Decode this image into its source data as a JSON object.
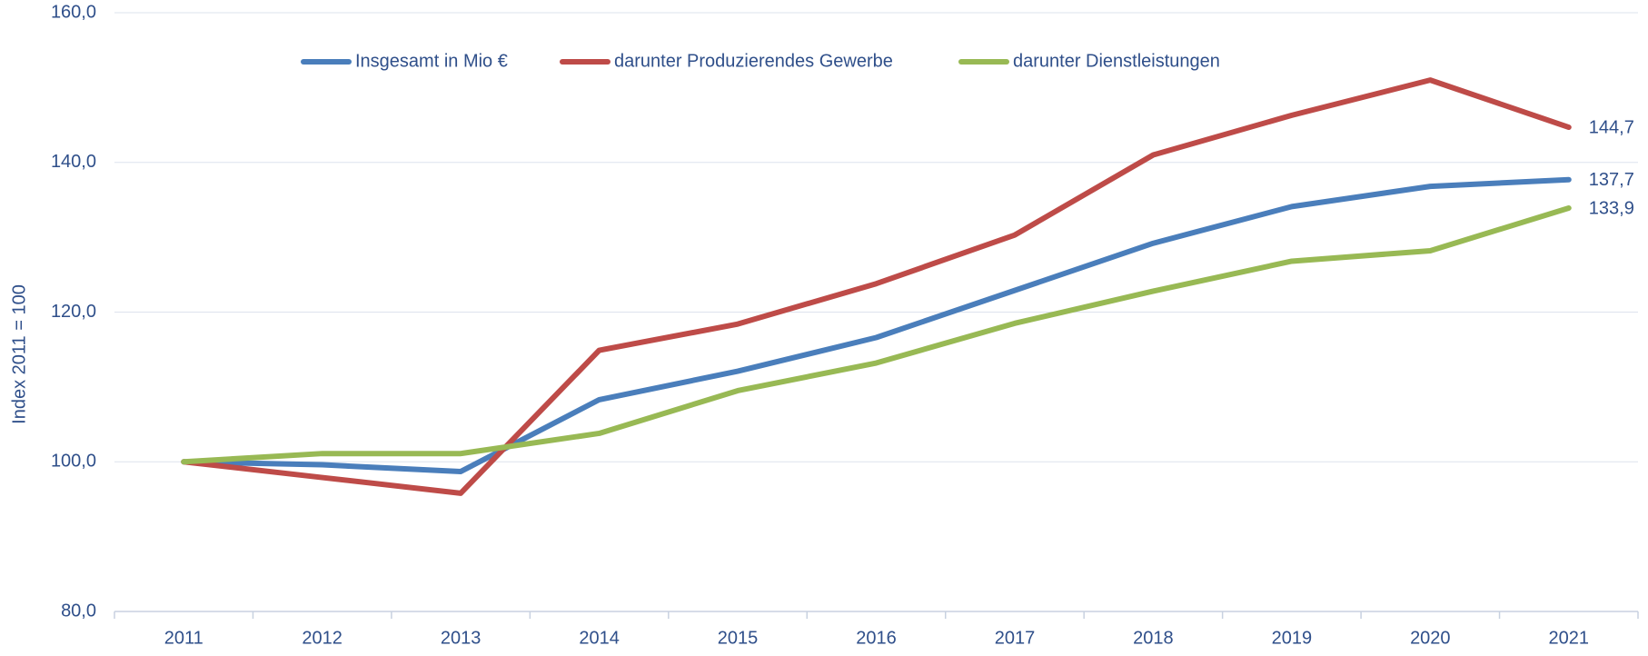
{
  "chart_data": {
    "type": "line",
    "y_label": "Index 2011 = 100",
    "categories": [
      "2011",
      "2012",
      "2013",
      "2014",
      "2015",
      "2016",
      "2017",
      "2018",
      "2019",
      "2020",
      "2021"
    ],
    "series": [
      {
        "name": "Insgesamt in Mio €",
        "color": "#4a7ebb",
        "values": [
          100,
          99.6,
          98.7,
          108.3,
          112.1,
          116.6,
          122.9,
          129.2,
          134.1,
          136.8,
          137.7
        ],
        "value_labels": [
          null,
          null,
          null,
          null,
          null,
          null,
          null,
          null,
          null,
          null,
          "137,7"
        ]
      },
      {
        "name": "darunter Produzierendes Gewerbe",
        "color": "#be4b48",
        "values": [
          100,
          97.9,
          95.8,
          114.9,
          118.4,
          123.8,
          130.3,
          141,
          146.3,
          151,
          144.7
        ],
        "value_labels": [
          null,
          null,
          null,
          null,
          null,
          null,
          null,
          null,
          null,
          null,
          "144,7"
        ]
      },
      {
        "name": "darunter Dienstleistungen",
        "color": "#98b954",
        "values": [
          100,
          101.1,
          101.1,
          103.8,
          109.5,
          113.2,
          118.5,
          122.8,
          126.8,
          128.2,
          133.9
        ],
        "value_labels": [
          null,
          null,
          null,
          null,
          null,
          null,
          null,
          null,
          null,
          null,
          "133,9"
        ]
      }
    ],
    "ylim": [
      80,
      160
    ],
    "yticks": [
      {
        "value": 80,
        "label": "80,0"
      },
      {
        "value": 100,
        "label": "100,0"
      },
      {
        "value": 120,
        "label": "120,0"
      },
      {
        "value": 140,
        "label": "140,0"
      },
      {
        "value": 160,
        "label": "160,0"
      }
    ],
    "grid": true,
    "legend": "top"
  }
}
